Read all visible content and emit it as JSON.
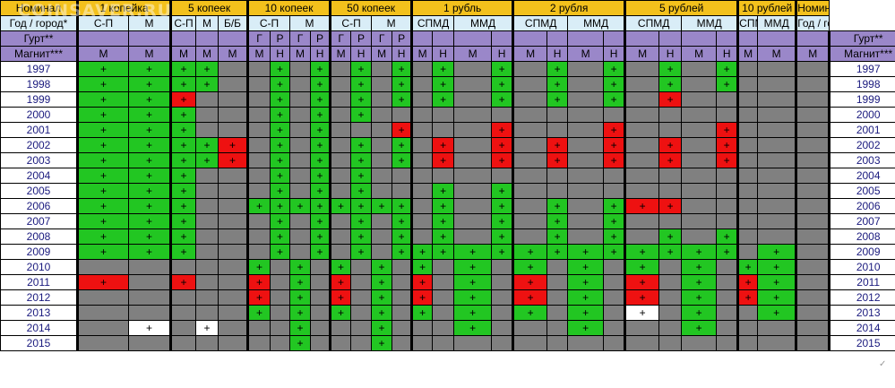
{
  "watermark": "COINSAVER.RU",
  "header": {
    "nominal_left": "Номинал",
    "nominal_right": "Номинал",
    "denominations": [
      "1 копейка",
      "5 копеек",
      "10 копеек",
      "50 копеек",
      "1 рубль",
      "2 рубля",
      "5 рублей",
      "10 рублей"
    ],
    "city_label_left": "Год / город*",
    "city_label_right": "Год / город*",
    "cities": [
      "С-П",
      "М",
      "С-П",
      "М",
      "Б/Б",
      "С-П",
      "М",
      "С-П",
      "М",
      "СПМД",
      "ММД",
      "СПМД",
      "ММД",
      "СПМД",
      "ММД",
      "СПМД",
      "ММД"
    ],
    "gurt_label_left": "Гурт**",
    "gurt_label_right": "Гурт**",
    "gurt": [
      "",
      "",
      "",
      "",
      "",
      "Г",
      "Р",
      "Г",
      "Р",
      "Г",
      "Р",
      "Г",
      "Р",
      "",
      "",
      "",
      "",
      "",
      "",
      "",
      "",
      "",
      "",
      "",
      "",
      "",
      "",
      "",
      "",
      "",
      ""
    ],
    "magnet_label_left": "Магнит***",
    "magnet_label_right": "Магнит***",
    "magnet": [
      "М",
      "М",
      "М",
      "М",
      "М",
      "М",
      "Н",
      "М",
      "Н",
      "М",
      "Н",
      "М",
      "Н",
      "М",
      "Н",
      "М",
      "Н",
      "М",
      "Н",
      "М",
      "Н",
      "М",
      "Н",
      "М",
      "Н",
      "М",
      "М"
    ]
  },
  "legend_colors": {
    "present": "#22c622",
    "rare": "#ee1111",
    "absent": "#808080",
    "special": "#ffffff"
  },
  "years": [
    "1997",
    "1998",
    "1999",
    "2000",
    "2001",
    "2002",
    "2003",
    "2004",
    "2005",
    "2006",
    "2007",
    "2008",
    "2009",
    "2010",
    "2011",
    "2012",
    "2013",
    "2014",
    "2015"
  ],
  "rows": [
    "ggggx xgxg xgxg xgxg xgxg xgxg xx",
    "ggggx xgxg xgxg xgxg xgxg xgxg xx",
    "ggrxx xgxg xgxg xgxg xgxg xrxx xx",
    "gggxx xgxg xgxx xxxx xxxx xxxx xx",
    "gggxx xgxg xxxr xxxr xxxr xxxr xx",
    "ggggr xgxg xgxg xrxr xrxr xrxr xx",
    "ggggr xgxg xgxg xrxr xrxr xrxr xx",
    "gggxx xgxg xgxx xxxx xxxx xxxx xx",
    "gggxx xgxg xgxx xgxg xxxx xxxx xx",
    "gggxx ggggggggxgxgxgxgrrxx xx",
    "gggxx xgxg xgxg xgxg xgxg xxxx xx",
    "gggxx xgxg xgxg xgxg xgxg xgxg xx",
    "gggxx xgxg xgxg gggg gggg gggg xg",
    "xxxxx gxgx gxgx gxgx gxgx gxgx gg",
    "rxrxx rxgx rxgx rxgx rxgx rxgx rg",
    "xxxxx rxgx rxgx rxgx rxgx rxgx rg",
    "xxxxx gxgx gxgx gxgx gxgx wxgx xg",
    "xwxwx xxgx xxgx xxgx xxgx xxgx xx",
    "xxxxx xxgx xxgx xxxx xxxx xxxx xx"
  ],
  "plus": "+"
}
